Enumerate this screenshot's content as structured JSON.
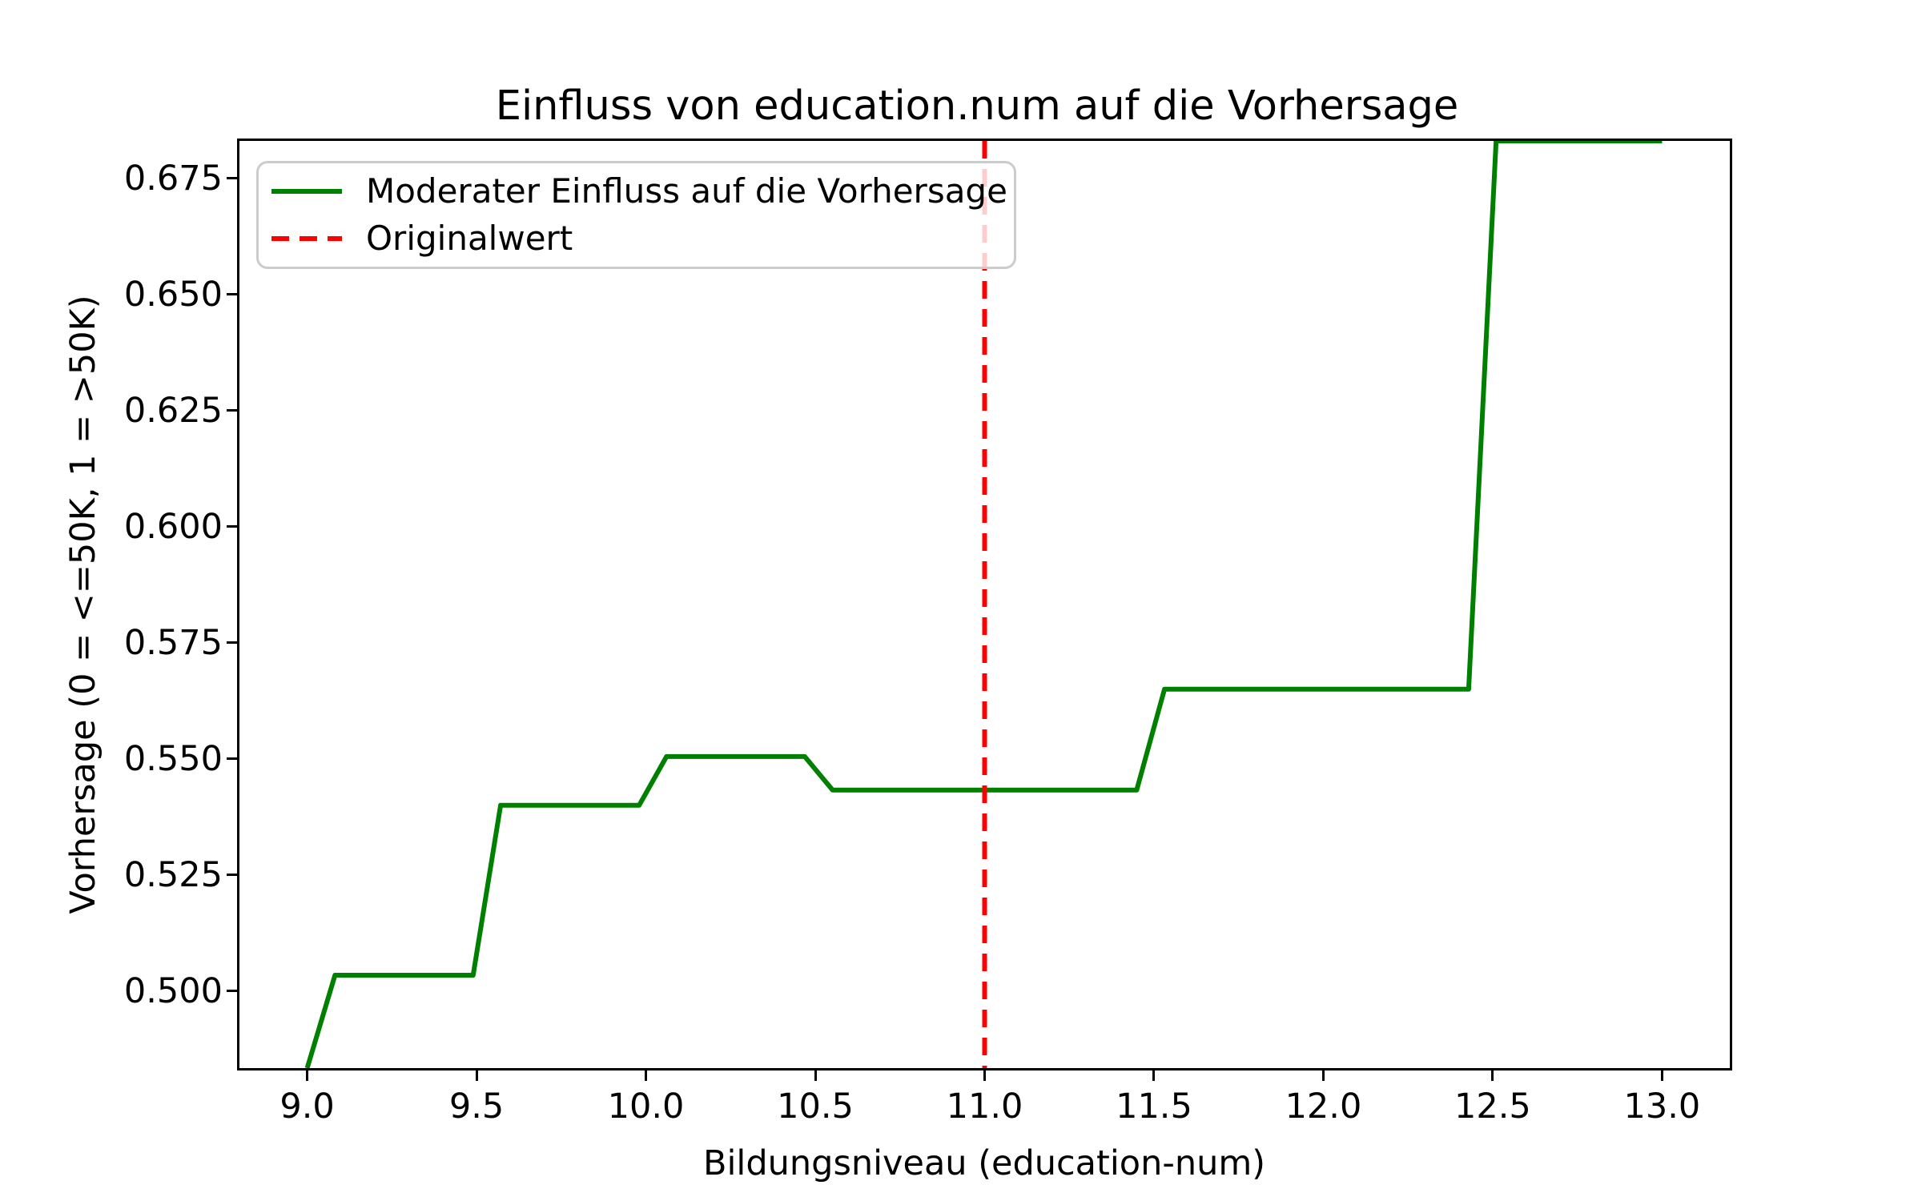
{
  "title": "Einfluss von education.num auf die Vorhersage",
  "xlabel": "Bildungsniveau (education-num)",
  "ylabel": "Vorhersage (0 = <=50K, 1 = >50K)",
  "legend": {
    "position": "upper left",
    "items": [
      {
        "label": "Moderater Einfluss auf die Vorhersage",
        "color": "#008000",
        "style": "solid"
      },
      {
        "label": "Originalwert",
        "color": "#ff0000",
        "style": "dashed"
      }
    ]
  },
  "colors": {
    "line_green": "#008000",
    "vline_red": "#ff0000",
    "spine": "#000000",
    "legend_border": "#cccccc"
  },
  "chart_data": {
    "type": "line",
    "title": "Einfluss von education.num auf die Vorhersage",
    "xlabel": "Bildungsniveau (education-num)",
    "ylabel": "Vorhersage (0 = <=50K, 1 = >50K)",
    "xlim": [
      8.8,
      13.2
    ],
    "ylim": [
      0.4834,
      0.6831
    ],
    "grid": false,
    "x_ticks": [
      {
        "value": 9.0,
        "label": "9.0"
      },
      {
        "value": 9.5,
        "label": "9.5"
      },
      {
        "value": 10.0,
        "label": "10.0"
      },
      {
        "value": 10.5,
        "label": "10.5"
      },
      {
        "value": 11.0,
        "label": "11.0"
      },
      {
        "value": 11.5,
        "label": "11.5"
      },
      {
        "value": 12.0,
        "label": "12.0"
      },
      {
        "value": 12.5,
        "label": "12.5"
      },
      {
        "value": 13.0,
        "label": "13.0"
      }
    ],
    "y_ticks": [
      {
        "value": 0.5,
        "label": "0.500"
      },
      {
        "value": 0.525,
        "label": "0.525"
      },
      {
        "value": 0.55,
        "label": "0.550"
      },
      {
        "value": 0.575,
        "label": "0.575"
      },
      {
        "value": 0.6,
        "label": "0.600"
      },
      {
        "value": 0.625,
        "label": "0.625"
      },
      {
        "value": 0.65,
        "label": "0.650"
      },
      {
        "value": 0.675,
        "label": "0.675"
      }
    ],
    "series": [
      {
        "name": "Moderater Einfluss auf die Vorhersage",
        "color": "#008000",
        "linewidth": 6,
        "points": [
          [
            9.0,
            0.4834
          ],
          [
            9.082,
            0.5034
          ],
          [
            9.49,
            0.5034
          ],
          [
            9.571,
            0.54
          ],
          [
            9.98,
            0.54
          ],
          [
            10.061,
            0.5505
          ],
          [
            10.469,
            0.5505
          ],
          [
            10.551,
            0.5433
          ],
          [
            11.449,
            0.5433
          ],
          [
            11.531,
            0.565
          ],
          [
            12.429,
            0.565
          ],
          [
            12.51,
            0.6831
          ],
          [
            13.0,
            0.6831
          ]
        ]
      }
    ],
    "vline": {
      "name": "Originalwert",
      "x": 11.0,
      "color": "#ff0000",
      "style": "dashed",
      "linewidth": 6,
      "dash_pattern": [
        22,
        13
      ]
    }
  }
}
